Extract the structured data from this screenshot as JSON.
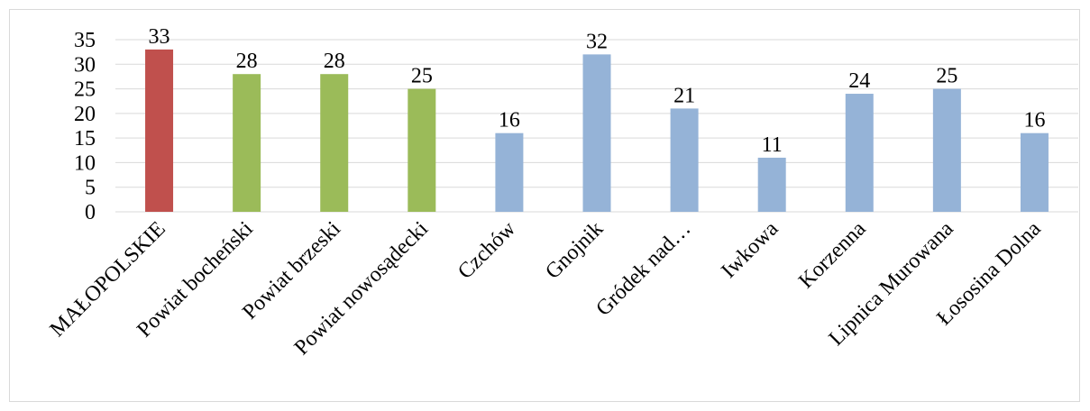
{
  "chart_data": {
    "type": "bar",
    "categories": [
      "MAŁOPOLSKIE",
      "Powiat bocheński",
      "Powiat brzeski",
      "Powiat nowosądecki",
      "Czchów",
      "Gnojnik",
      "Gródek nad…",
      "Iwkowa",
      "Korzenna",
      "Lipnica Murowana",
      "Łososina Dolna"
    ],
    "values": [
      33,
      28,
      28,
      25,
      16,
      32,
      21,
      11,
      24,
      25,
      16
    ],
    "bar_colors": [
      "#C0504D",
      "#9BBB59",
      "#9BBB59",
      "#9BBB59",
      "#95B3D7",
      "#95B3D7",
      "#95B3D7",
      "#95B3D7",
      "#95B3D7",
      "#95B3D7",
      "#95B3D7"
    ],
    "ylim": [
      0,
      35
    ],
    "y_ticks": [
      0,
      5,
      10,
      15,
      20,
      25,
      30,
      35
    ],
    "grid": true,
    "legend": false,
    "data_labels": true,
    "title": "",
    "xlabel": "",
    "ylabel": ""
  }
}
